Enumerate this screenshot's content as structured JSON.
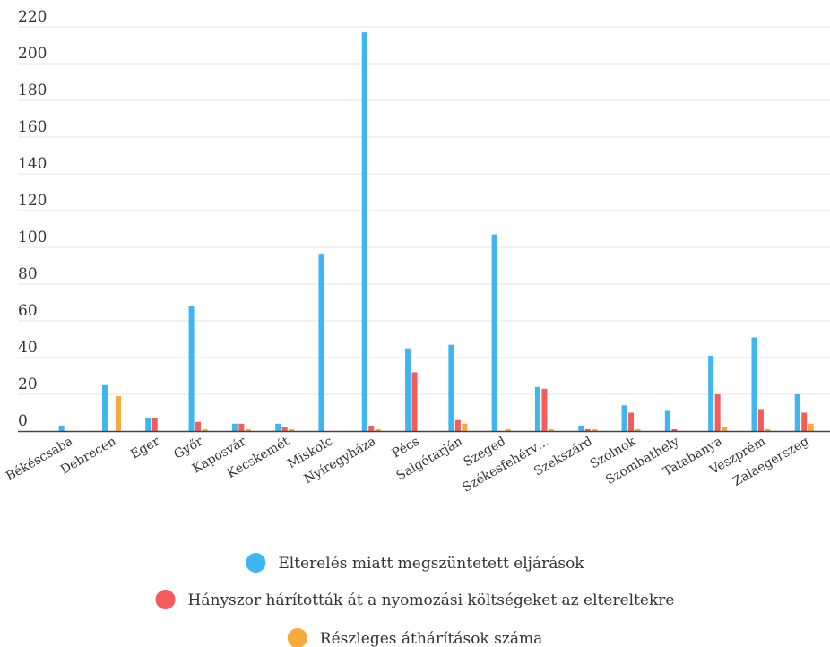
{
  "chart_data": {
    "type": "bar",
    "categories": [
      "Békéscsaba",
      "Debrecen",
      "Eger",
      "Győr",
      "Kaposvár",
      "Kecskemét",
      "Miskolc",
      "Nyíregyháza",
      "Pécs",
      "Salgótarján",
      "Szeged",
      "Székesfehérv…",
      "Szekszárd",
      "Szolnok",
      "Szombathely",
      "Tatabánya",
      "Veszprém",
      "Zalaegerszeg"
    ],
    "series": [
      {
        "name": "Elterelés miatt megszüntetett eljárások",
        "color": "#3fb6ef",
        "values": [
          3,
          25,
          7,
          68,
          4,
          4,
          96,
          217,
          45,
          47,
          107,
          24,
          3,
          14,
          11,
          41,
          51,
          20
        ]
      },
      {
        "name": "Hányszor hárították át a nyomozási költségeket az eltereltekre",
        "color": "#f45b5b",
        "values": [
          0,
          0,
          7,
          5,
          4,
          2,
          0,
          3,
          32,
          6,
          0,
          23,
          1,
          10,
          1,
          20,
          12,
          10
        ]
      },
      {
        "name": "Részleges áthárítások száma",
        "color": "#f7a93b",
        "values": [
          0,
          19,
          0,
          1,
          1,
          1,
          0,
          1,
          0,
          4,
          1,
          1,
          1,
          1,
          0,
          2,
          1,
          4
        ]
      }
    ],
    "yticks": [
      0,
      20,
      40,
      60,
      80,
      100,
      120,
      140,
      160,
      180,
      200,
      220
    ],
    "ylim": [
      0,
      220
    ],
    "grid": true,
    "legend": "bottom-center"
  }
}
